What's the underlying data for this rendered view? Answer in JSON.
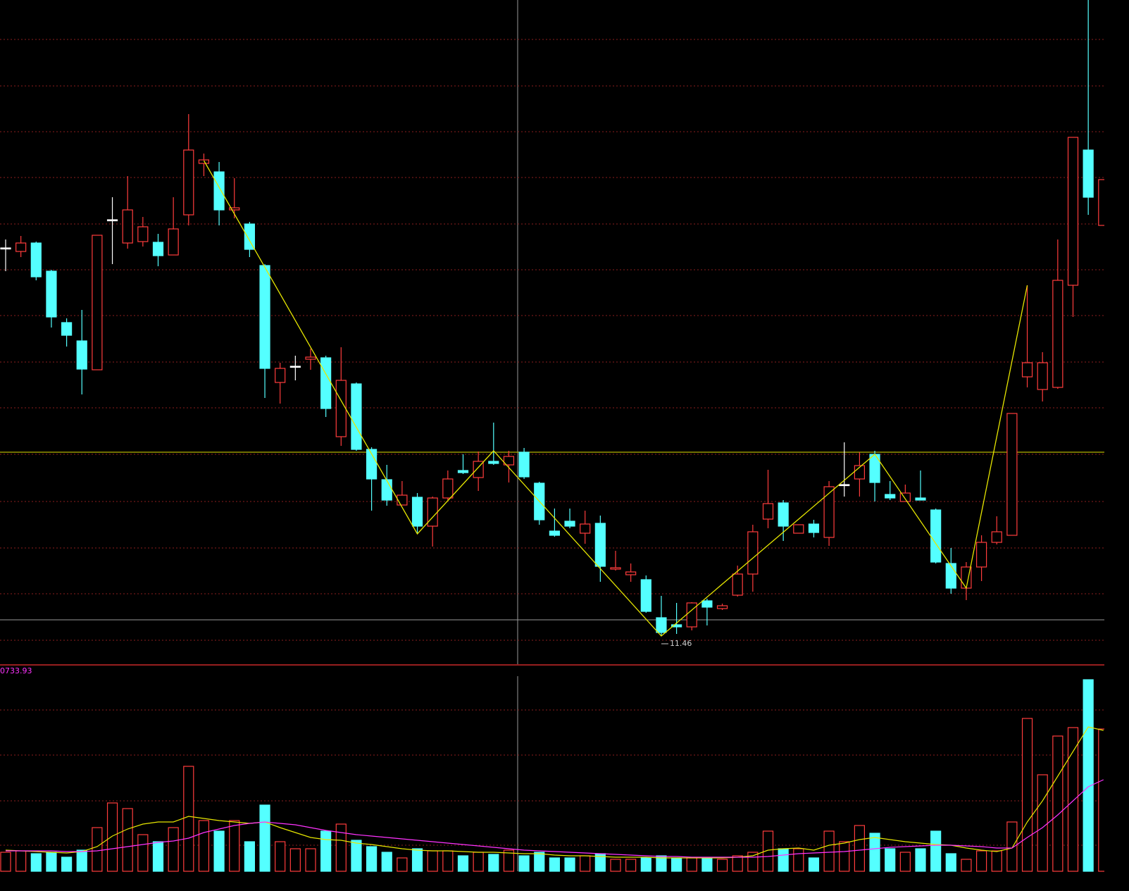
{
  "chart_data": [
    {
      "type": "candlestick",
      "open": [
        16.97,
        16.92,
        17.04,
        16.64,
        15.91,
        15.65,
        15.24,
        17.37,
        17.04,
        17.06,
        17.05,
        16.87,
        17.44,
        18.17,
        18.05,
        17.51,
        17.31,
        16.72,
        15.06,
        15.29,
        15.39,
        15.41,
        14.29,
        15.04,
        14.11,
        13.68,
        13.32,
        13.43,
        13.02,
        13.42,
        13.81,
        13.71,
        13.94,
        13.89,
        14.07,
        13.63,
        12.95,
        13.09,
        12.92,
        13.06,
        12.41,
        12.33,
        12.26,
        11.72,
        11.62,
        11.59,
        11.96,
        11.85,
        12.04,
        12.34,
        13.12,
        13.35,
        12.92,
        13.05,
        12.86,
        13.61,
        13.69,
        14.04,
        13.47,
        13.37,
        13.42,
        13.25,
        12.49,
        12.14,
        12.44,
        12.79,
        12.89,
        15.14,
        14.96,
        14.99,
        16.44,
        18.36,
        17.29
      ],
      "high": [
        17.09,
        17.14,
        17.06,
        16.66,
        15.97,
        16.09,
        17.15,
        17.69,
        17.99,
        17.41,
        17.17,
        17.69,
        18.87,
        18.31,
        18.19,
        17.96,
        17.34,
        16.74,
        15.34,
        15.44,
        15.54,
        15.44,
        15.56,
        15.06,
        14.14,
        13.89,
        13.66,
        13.49,
        13.44,
        13.81,
        14.04,
        14.08,
        14.49,
        14.09,
        14.13,
        13.65,
        13.27,
        13.27,
        13.24,
        13.17,
        12.67,
        12.49,
        12.32,
        12.03,
        11.93,
        11.94,
        11.99,
        11.92,
        12.46,
        13.04,
        13.82,
        13.39,
        13.04,
        13.11,
        13.66,
        14.21,
        14.07,
        14.09,
        13.66,
        13.61,
        13.81,
        13.27,
        12.71,
        12.51,
        12.89,
        13.16,
        14.62,
        16.44,
        15.49,
        17.09,
        18.54,
        20.49,
        17.94
      ],
      "low": [
        16.64,
        16.84,
        16.51,
        15.84,
        15.57,
        14.89,
        15.24,
        16.74,
        16.96,
        16.99,
        16.71,
        16.87,
        17.29,
        17.99,
        17.29,
        17.39,
        16.84,
        14.84,
        14.76,
        15.09,
        15.24,
        14.57,
        14.16,
        14.09,
        13.24,
        13.31,
        13.32,
        12.91,
        12.73,
        13.39,
        13.76,
        13.52,
        13.89,
        13.64,
        13.69,
        13.04,
        12.87,
        12.99,
        12.77,
        12.23,
        12.39,
        12.23,
        11.79,
        11.46,
        11.49,
        11.54,
        11.61,
        11.83,
        12.02,
        12.09,
        12.99,
        12.81,
        12.92,
        12.86,
        12.74,
        13.44,
        13.44,
        13.37,
        13.39,
        13.37,
        13.39,
        12.49,
        12.06,
        11.97,
        12.24,
        12.76,
        12.89,
        14.99,
        14.79,
        14.97,
        15.99,
        17.44,
        17.29
      ],
      "close": [
        16.97,
        17.04,
        16.56,
        15.99,
        15.73,
        15.25,
        17.15,
        17.37,
        17.51,
        17.27,
        16.86,
        17.24,
        18.36,
        18.22,
        17.51,
        17.54,
        16.95,
        15.26,
        15.26,
        15.29,
        15.42,
        14.69,
        15.09,
        14.11,
        13.69,
        13.39,
        13.46,
        13.02,
        13.42,
        13.69,
        13.78,
        13.94,
        13.91,
        14.01,
        13.72,
        13.11,
        12.89,
        13.02,
        13.05,
        12.45,
        12.43,
        12.37,
        11.81,
        11.51,
        11.59,
        11.93,
        11.87,
        11.89,
        12.34,
        12.94,
        13.34,
        13.02,
        13.04,
        12.93,
        13.58,
        13.61,
        13.88,
        13.64,
        13.42,
        13.49,
        13.39,
        12.51,
        12.14,
        12.44,
        12.79,
        12.94,
        14.62,
        15.34,
        15.34,
        16.51,
        18.54,
        17.69,
        17.94
      ],
      "up_color": "#ff3c3c",
      "down_color": "#54ffff",
      "doji_color": "#ffffff",
      "ylim": [
        11.09,
        20.49
      ],
      "yticks": [
        19.93,
        19.27,
        18.62,
        17.97,
        17.31,
        16.66,
        16.01,
        15.35,
        14.7,
        14.04,
        13.37,
        12.71,
        12.06,
        11.4
      ],
      "grid": true,
      "zigzag": {
        "color": "#e6e600",
        "x": [
          13,
          27,
          32,
          43,
          57,
          63,
          67
        ],
        "values": [
          18.21,
          12.91,
          14.09,
          11.46,
          14.04,
          12.14,
          16.44
        ]
      },
      "level_line": {
        "value": 14.07,
        "color": "#b4b400"
      },
      "low_label": {
        "x": 43,
        "value": 11.46
      }
    },
    {
      "type": "volume",
      "label": "0733.93",
      "values": [
        27,
        29,
        25,
        27,
        20,
        30,
        62,
        97,
        89,
        52,
        42,
        62,
        149,
        72,
        57,
        72,
        42,
        94,
        42,
        32,
        32,
        57,
        67,
        44,
        35,
        27,
        19,
        32,
        29,
        29,
        22,
        27,
        24,
        30,
        22,
        27,
        19,
        19,
        22,
        25,
        17,
        17,
        19,
        22,
        19,
        19,
        19,
        17,
        22,
        27,
        57,
        32,
        32,
        19,
        57,
        42,
        65,
        54,
        32,
        27,
        32,
        57,
        25,
        17,
        29,
        29,
        70,
        217,
        137,
        192,
        204,
        272,
        202
      ],
      "ylim": [
        0,
        280
      ],
      "yticks": [
        37,
        100,
        165,
        229
      ],
      "grid": true,
      "lines": [
        {
          "color": "#e6e600",
          "values": [
            30,
            29,
            28,
            27,
            26,
            28,
            35,
            50,
            60,
            67,
            70,
            70,
            78,
            75,
            72,
            70,
            68,
            70,
            62,
            55,
            48,
            45,
            44,
            40,
            38,
            35,
            32,
            30,
            29,
            29,
            28,
            27,
            27,
            26,
            25,
            25,
            23,
            22,
            22,
            21,
            20,
            20,
            20,
            19,
            19,
            19,
            19,
            19,
            20,
            22,
            30,
            32,
            33,
            30,
            37,
            40,
            45,
            48,
            45,
            42,
            40,
            38,
            37,
            33,
            30,
            28,
            33,
            70,
            100,
            135,
            170,
            205,
            200
          ]
        },
        {
          "color": "#ff33ff",
          "values": [
            29,
            29,
            29,
            29,
            28,
            28,
            29,
            32,
            35,
            38,
            41,
            43,
            47,
            55,
            60,
            65,
            68,
            70,
            68,
            66,
            62,
            58,
            55,
            52,
            50,
            48,
            46,
            44,
            42,
            40,
            38,
            36,
            34,
            32,
            30,
            29,
            28,
            27,
            26,
            25,
            24,
            23,
            22,
            21,
            21,
            20,
            20,
            20,
            20,
            20,
            21,
            23,
            25,
            26,
            27,
            28,
            30,
            32,
            34,
            35,
            36,
            37,
            37,
            36,
            35,
            33,
            33,
            48,
            62,
            80,
            100,
            120,
            130
          ]
        }
      ]
    }
  ]
}
